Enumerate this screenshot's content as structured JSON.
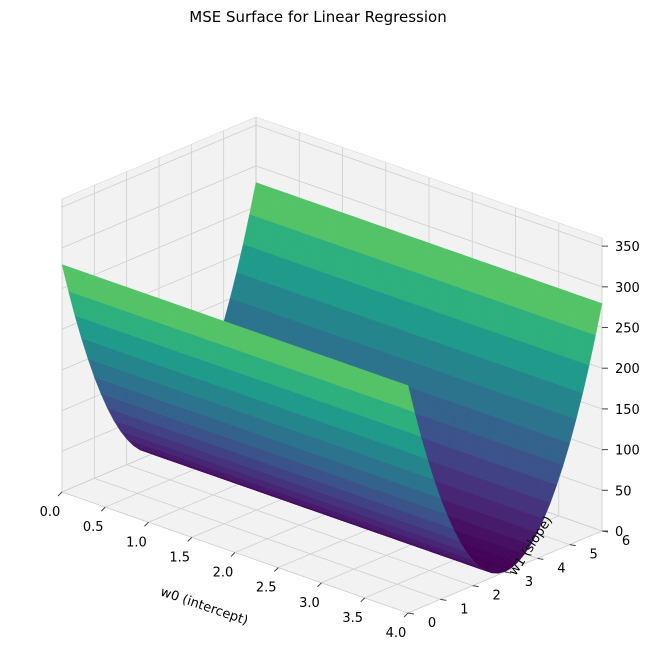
{
  "chart_data": {
    "type": "surface",
    "title": "MSE Surface for Linear Regression",
    "xlabel": "w0 (intercept)",
    "ylabel": "w1 (slope)",
    "zlabel": "",
    "xlim": [
      0,
      4
    ],
    "ylim": [
      0,
      6
    ],
    "zlim": [
      0,
      360
    ],
    "x_ticks": [
      "0.0",
      "0.5",
      "1.0",
      "1.5",
      "2.0",
      "2.5",
      "3.0",
      "3.5",
      "4.0"
    ],
    "y_ticks": [
      "0",
      "1",
      "2",
      "3",
      "4",
      "5",
      "6"
    ],
    "z_ticks": [
      "0",
      "50",
      "100",
      "150",
      "200",
      "250",
      "300",
      "350"
    ],
    "colormap": "viridis",
    "colormap_stops": [
      "#440154",
      "#482878",
      "#3e4a89",
      "#31688e",
      "#26828e",
      "#1f9e89",
      "#35b779",
      "#6ece58",
      "#b5de2b",
      "#fde725"
    ],
    "grid": true,
    "pane_color": "#f2f2f2",
    "surface": {
      "function": "mse",
      "min_w1": 3,
      "curvature": 31,
      "w0_coef": 2.3,
      "min_value": 0.5
    },
    "grid_points": 30
  }
}
